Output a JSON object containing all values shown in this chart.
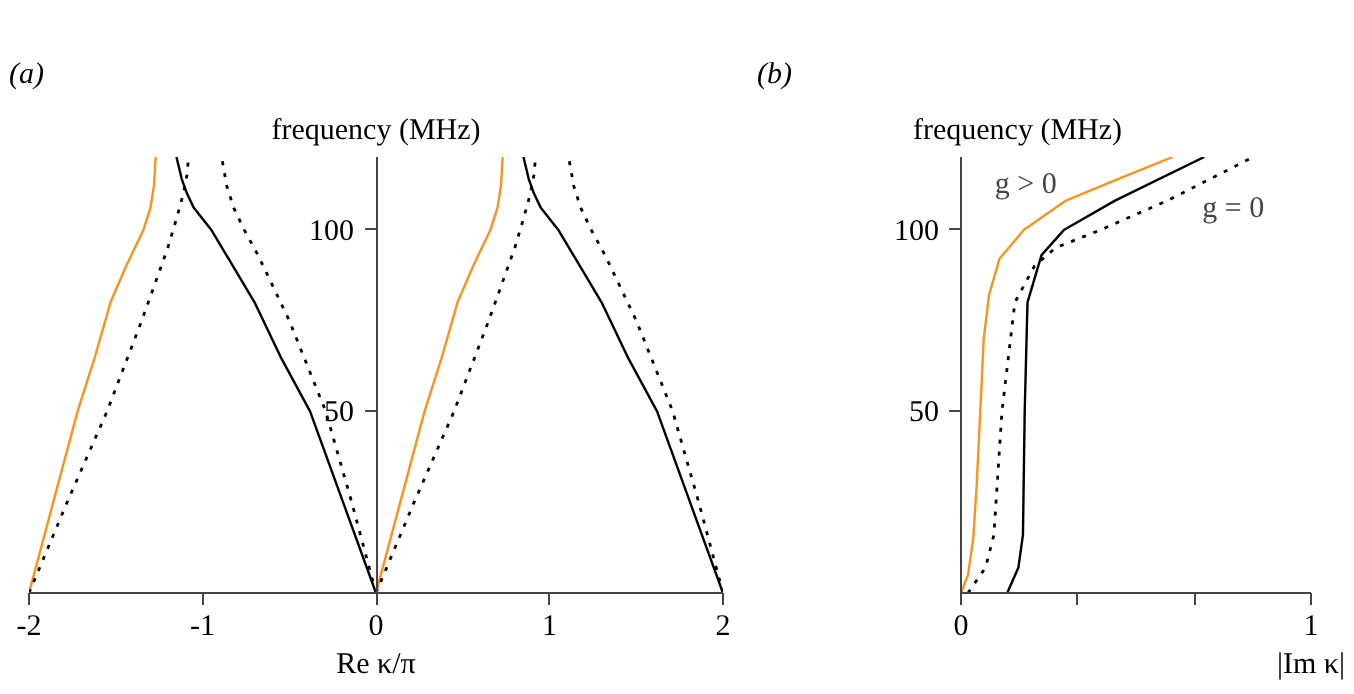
{
  "chart_data": [
    {
      "type": "line",
      "title": "(a)",
      "xlabel": "Re κ/π",
      "ylabel": "frequency (MHz)",
      "xlim": [
        -2,
        2
      ],
      "ylim": [
        0,
        120
      ],
      "xticks": [
        -2,
        -1,
        0,
        1,
        2
      ],
      "yticks": [
        50,
        100
      ],
      "grid": false,
      "marker": "none",
      "series": [
        {
          "color": "#f7931e",
          "line_style": "solid",
          "x": [
            -2,
            -1.86,
            -1.72,
            -1.62,
            -1.53,
            -1.44,
            -1.34,
            -1.3,
            -1.28,
            -1.27
          ],
          "values": [
            0,
            25,
            50,
            65,
            80,
            90,
            100,
            106,
            112,
            120
          ]
        },
        {
          "color": "#000000",
          "line_style": "dotted",
          "x": [
            -2,
            -1.78,
            -1.55,
            -1.35,
            -1.2,
            -1.15,
            -1.11,
            -1.09,
            -1.08
          ],
          "values": [
            0,
            25,
            50,
            75,
            95,
            103,
            110,
            115,
            120
          ]
        },
        {
          "color": "#000000",
          "line_style": "solid",
          "x": [
            0,
            -0.19,
            -0.38,
            -0.55,
            -0.7,
            -0.85,
            -0.95,
            -1.05,
            -1.09,
            -1.12,
            -1.15
          ],
          "values": [
            0,
            25,
            50,
            65,
            80,
            92,
            100,
            106,
            110,
            114,
            120
          ]
        },
        {
          "color": "#000000",
          "line_style": "dotted",
          "x": [
            0,
            -0.14,
            -0.29,
            -0.5,
            -0.68,
            -0.76,
            -0.82,
            -0.86,
            -0.89
          ],
          "values": [
            0,
            25,
            50,
            75,
            93,
            100,
            106,
            112,
            120
          ]
        },
        {
          "color": "#f7931e",
          "line_style": "solid",
          "x": [
            0,
            0.14,
            0.28,
            0.38,
            0.47,
            0.56,
            0.66,
            0.7,
            0.72,
            0.73
          ],
          "values": [
            0,
            25,
            50,
            65,
            80,
            90,
            100,
            106,
            112,
            120
          ]
        },
        {
          "color": "#000000",
          "line_style": "dotted",
          "x": [
            0,
            0.22,
            0.45,
            0.65,
            0.8,
            0.85,
            0.89,
            0.91,
            0.92
          ],
          "values": [
            0,
            25,
            50,
            75,
            95,
            103,
            110,
            115,
            120
          ]
        },
        {
          "color": "#000000",
          "line_style": "solid",
          "x": [
            2,
            1.81,
            1.62,
            1.45,
            1.3,
            1.15,
            1.05,
            0.95,
            0.91,
            0.88,
            0.85
          ],
          "values": [
            0,
            25,
            50,
            65,
            80,
            92,
            100,
            106,
            110,
            114,
            120
          ]
        },
        {
          "color": "#000000",
          "line_style": "dotted",
          "x": [
            2,
            1.86,
            1.71,
            1.5,
            1.32,
            1.24,
            1.18,
            1.14,
            1.11
          ],
          "values": [
            0,
            25,
            50,
            75,
            93,
            100,
            106,
            112,
            120
          ]
        }
      ]
    },
    {
      "type": "line",
      "title": "(b)",
      "xlabel": "|Im κ|",
      "ylabel": "frequency (MHz)",
      "xlim": [
        0,
        1
      ],
      "ylim": [
        0,
        120
      ],
      "xticks": [
        0,
        {
          "value": 0.333,
          "label": null
        },
        {
          "value": 0.667,
          "label": null
        },
        1
      ],
      "yticks": [
        50,
        100
      ],
      "grid": false,
      "marker": "none",
      "annotations": [
        "g > 0",
        "g = 0"
      ],
      "series": [
        {
          "color": "#f7931e",
          "line_style": "solid",
          "x": [
            0,
            0.02,
            0.035,
            0.045,
            0.055,
            0.065,
            0.08,
            0.11,
            0.18,
            0.3,
            0.45,
            0.605
          ],
          "values": [
            0,
            5,
            15,
            30,
            50,
            70,
            82,
            92,
            100,
            108,
            114,
            120
          ]
        },
        {
          "color": "#000000",
          "line_style": "dotted",
          "x": [
            0.02,
            0.07,
            0.094,
            0.117,
            0.154,
            0.21,
            0.27,
            0.4,
            0.59,
            0.835
          ],
          "values": [
            0,
            7,
            16,
            50,
            80,
            90,
            95,
            100,
            108,
            120
          ]
        },
        {
          "color": "#000000",
          "line_style": "solid",
          "x": [
            0.132,
            0.164,
            0.177,
            0.182,
            0.19,
            0.23,
            0.295,
            0.44,
            0.695
          ],
          "values": [
            0,
            7,
            16,
            50,
            80,
            93,
            100,
            108,
            120
          ]
        }
      ]
    }
  ]
}
